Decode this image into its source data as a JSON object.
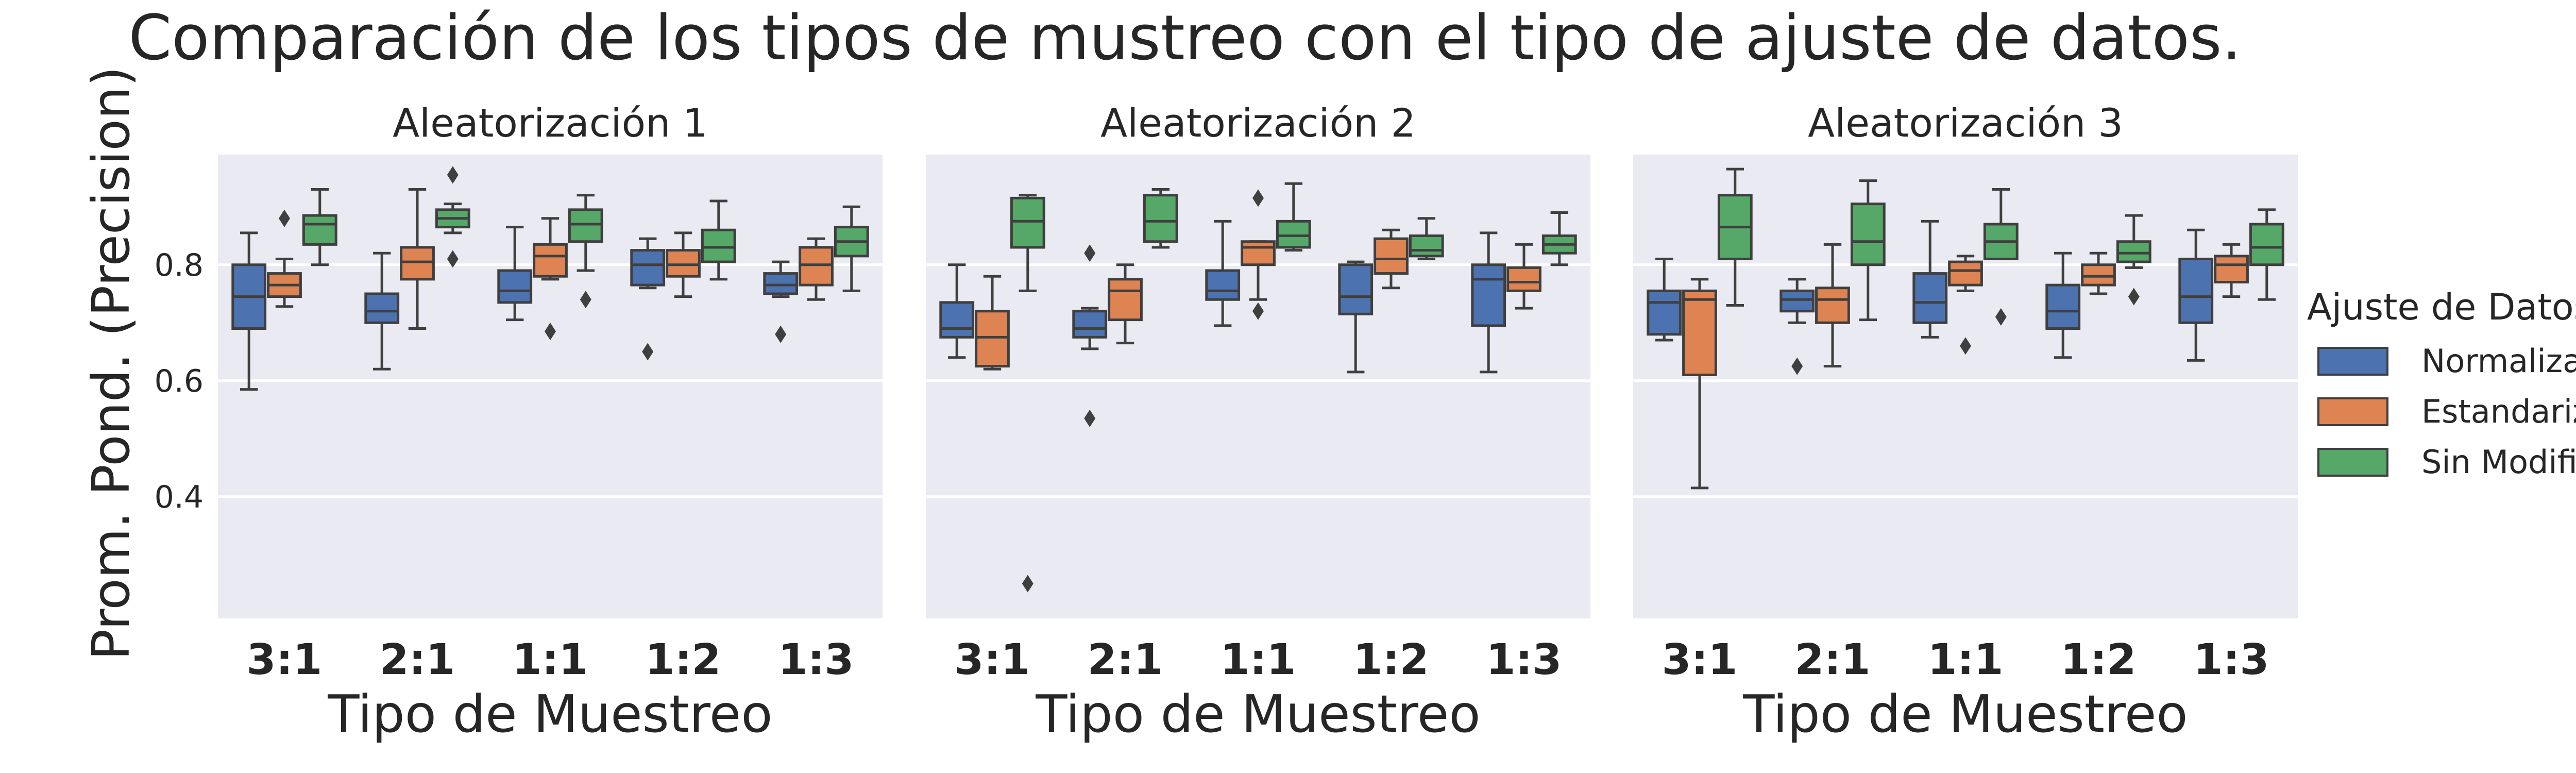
{
  "chart_data": {
    "type": "box",
    "title": "Comparación de los tipos de mustreo con el tipo de ajuste de datos.",
    "ylabel": "Prom. Pond. (Precision)",
    "xlabel": "Tipo de Muestreo",
    "ylim": [
      0.19,
      0.99
    ],
    "yticks": [
      0.4,
      0.6,
      0.8
    ],
    "grid": true,
    "categories": [
      "3:1",
      "2:1",
      "1:1",
      "1:2",
      "1:3"
    ],
    "legend": {
      "title": "Ajuste de Datos",
      "placement": "right",
      "entries": [
        "Normalizados",
        "Estandarizados",
        "Sin Modificación"
      ]
    },
    "colors": [
      "#4c72b0",
      "#dd8452",
      "#55a868"
    ],
    "panels": [
      {
        "title": "Aleatorización 1",
        "groups": [
          [
            {
              "min": 0.585,
              "q1": 0.69,
              "median": 0.745,
              "q3": 0.8,
              "max": 0.855,
              "outliers": []
            },
            {
              "min": 0.728,
              "q1": 0.745,
              "median": 0.765,
              "q3": 0.785,
              "max": 0.81,
              "outliers": [
                0.88
              ]
            },
            {
              "min": 0.8,
              "q1": 0.835,
              "median": 0.87,
              "q3": 0.885,
              "max": 0.93,
              "outliers": []
            }
          ],
          [
            {
              "min": 0.62,
              "q1": 0.7,
              "median": 0.72,
              "q3": 0.75,
              "max": 0.82,
              "outliers": []
            },
            {
              "min": 0.69,
              "q1": 0.775,
              "median": 0.805,
              "q3": 0.83,
              "max": 0.93,
              "outliers": []
            },
            {
              "min": 0.855,
              "q1": 0.865,
              "median": 0.88,
              "q3": 0.895,
              "max": 0.905,
              "outliers": [
                0.955,
                0.81
              ]
            }
          ],
          [
            {
              "min": 0.705,
              "q1": 0.735,
              "median": 0.755,
              "q3": 0.79,
              "max": 0.865,
              "outliers": []
            },
            {
              "min": 0.775,
              "q1": 0.78,
              "median": 0.815,
              "q3": 0.835,
              "max": 0.88,
              "outliers": [
                0.685
              ]
            },
            {
              "min": 0.79,
              "q1": 0.84,
              "median": 0.87,
              "q3": 0.895,
              "max": 0.92,
              "outliers": [
                0.74
              ]
            }
          ],
          [
            {
              "min": 0.76,
              "q1": 0.765,
              "median": 0.8,
              "q3": 0.825,
              "max": 0.845,
              "outliers": [
                0.65
              ]
            },
            {
              "min": 0.745,
              "q1": 0.78,
              "median": 0.8,
              "q3": 0.825,
              "max": 0.855,
              "outliers": []
            },
            {
              "min": 0.775,
              "q1": 0.805,
              "median": 0.83,
              "q3": 0.86,
              "max": 0.91,
              "outliers": []
            }
          ],
          [
            {
              "min": 0.745,
              "q1": 0.75,
              "median": 0.765,
              "q3": 0.785,
              "max": 0.805,
              "outliers": [
                0.68
              ]
            },
            {
              "min": 0.74,
              "q1": 0.765,
              "median": 0.8,
              "q3": 0.83,
              "max": 0.845,
              "outliers": []
            },
            {
              "min": 0.755,
              "q1": 0.815,
              "median": 0.84,
              "q3": 0.865,
              "max": 0.9,
              "outliers": []
            }
          ]
        ]
      },
      {
        "title": "Aleatorización 2",
        "groups": [
          [
            {
              "min": 0.64,
              "q1": 0.675,
              "median": 0.69,
              "q3": 0.735,
              "max": 0.8,
              "outliers": []
            },
            {
              "min": 0.62,
              "q1": 0.625,
              "median": 0.675,
              "q3": 0.72,
              "max": 0.78,
              "outliers": []
            },
            {
              "min": 0.755,
              "q1": 0.83,
              "median": 0.875,
              "q3": 0.915,
              "max": 0.92,
              "outliers": [
                0.25
              ]
            }
          ],
          [
            {
              "min": 0.655,
              "q1": 0.675,
              "median": 0.69,
              "q3": 0.72,
              "max": 0.725,
              "outliers": [
                0.82,
                0.535
              ]
            },
            {
              "min": 0.665,
              "q1": 0.705,
              "median": 0.755,
              "q3": 0.775,
              "max": 0.8,
              "outliers": []
            },
            {
              "min": 0.83,
              "q1": 0.84,
              "median": 0.875,
              "q3": 0.92,
              "max": 0.93,
              "outliers": []
            }
          ],
          [
            {
              "min": 0.695,
              "q1": 0.74,
              "median": 0.755,
              "q3": 0.79,
              "max": 0.875,
              "outliers": []
            },
            {
              "min": 0.74,
              "q1": 0.8,
              "median": 0.83,
              "q3": 0.84,
              "max": 0.84,
              "outliers": [
                0.915,
                0.72
              ]
            },
            {
              "min": 0.825,
              "q1": 0.83,
              "median": 0.85,
              "q3": 0.875,
              "max": 0.94,
              "outliers": []
            }
          ],
          [
            {
              "min": 0.615,
              "q1": 0.715,
              "median": 0.745,
              "q3": 0.8,
              "max": 0.805,
              "outliers": []
            },
            {
              "min": 0.76,
              "q1": 0.785,
              "median": 0.81,
              "q3": 0.845,
              "max": 0.86,
              "outliers": []
            },
            {
              "min": 0.81,
              "q1": 0.815,
              "median": 0.825,
              "q3": 0.85,
              "max": 0.88,
              "outliers": []
            }
          ],
          [
            {
              "min": 0.615,
              "q1": 0.695,
              "median": 0.775,
              "q3": 0.8,
              "max": 0.855,
              "outliers": []
            },
            {
              "min": 0.725,
              "q1": 0.755,
              "median": 0.77,
              "q3": 0.795,
              "max": 0.835,
              "outliers": []
            },
            {
              "min": 0.8,
              "q1": 0.82,
              "median": 0.835,
              "q3": 0.85,
              "max": 0.89,
              "outliers": []
            }
          ]
        ]
      },
      {
        "title": "Aleatorización 3",
        "groups": [
          [
            {
              "min": 0.67,
              "q1": 0.68,
              "median": 0.735,
              "q3": 0.755,
              "max": 0.81,
              "outliers": []
            },
            {
              "min": 0.415,
              "q1": 0.61,
              "median": 0.74,
              "q3": 0.755,
              "max": 0.775,
              "outliers": []
            },
            {
              "min": 0.73,
              "q1": 0.81,
              "median": 0.865,
              "q3": 0.92,
              "max": 0.965,
              "outliers": []
            }
          ],
          [
            {
              "min": 0.7,
              "q1": 0.72,
              "median": 0.74,
              "q3": 0.755,
              "max": 0.775,
              "outliers": [
                0.625
              ]
            },
            {
              "min": 0.625,
              "q1": 0.7,
              "median": 0.74,
              "q3": 0.76,
              "max": 0.835,
              "outliers": []
            },
            {
              "min": 0.705,
              "q1": 0.8,
              "median": 0.84,
              "q3": 0.905,
              "max": 0.945,
              "outliers": []
            }
          ],
          [
            {
              "min": 0.675,
              "q1": 0.7,
              "median": 0.735,
              "q3": 0.785,
              "max": 0.875,
              "outliers": []
            },
            {
              "min": 0.755,
              "q1": 0.765,
              "median": 0.79,
              "q3": 0.805,
              "max": 0.815,
              "outliers": [
                0.66
              ]
            },
            {
              "min": 0.81,
              "q1": 0.81,
              "median": 0.84,
              "q3": 0.87,
              "max": 0.93,
              "outliers": [
                0.71
              ]
            }
          ],
          [
            {
              "min": 0.64,
              "q1": 0.69,
              "median": 0.72,
              "q3": 0.765,
              "max": 0.82,
              "outliers": []
            },
            {
              "min": 0.75,
              "q1": 0.765,
              "median": 0.78,
              "q3": 0.8,
              "max": 0.82,
              "outliers": []
            },
            {
              "min": 0.795,
              "q1": 0.805,
              "median": 0.82,
              "q3": 0.84,
              "max": 0.885,
              "outliers": [
                0.745
              ]
            }
          ],
          [
            {
              "min": 0.635,
              "q1": 0.7,
              "median": 0.745,
              "q3": 0.81,
              "max": 0.86,
              "outliers": []
            },
            {
              "min": 0.745,
              "q1": 0.77,
              "median": 0.8,
              "q3": 0.815,
              "max": 0.835,
              "outliers": []
            },
            {
              "min": 0.74,
              "q1": 0.8,
              "median": 0.83,
              "q3": 0.87,
              "max": 0.895,
              "outliers": []
            }
          ]
        ]
      }
    ]
  }
}
